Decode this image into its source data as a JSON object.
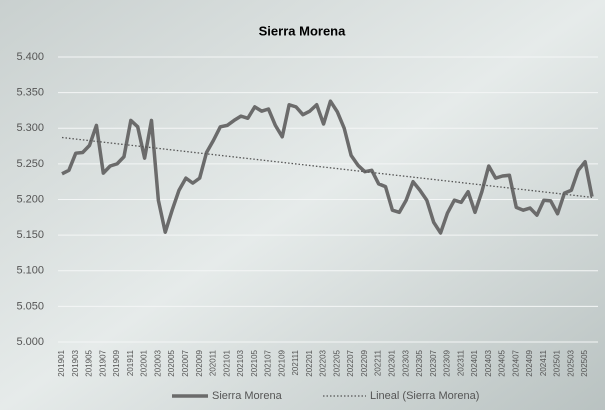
{
  "chart_data": {
    "type": "line",
    "title": "Sierra Morena",
    "categories": [
      "201901",
      null,
      "201903",
      null,
      "201905",
      null,
      "201907",
      null,
      "201909",
      null,
      "201911",
      null,
      "202001",
      null,
      "202003",
      null,
      "202005",
      null,
      "202007",
      null,
      "202009",
      null,
      "202011",
      null,
      "202101",
      null,
      "202103",
      null,
      "202105",
      null,
      "202107",
      null,
      "202109",
      null,
      "202111",
      null,
      "202201",
      null,
      "202203",
      null,
      "202205",
      null,
      "202207",
      null,
      "202209",
      null,
      "202211",
      null,
      "202301",
      null,
      "202303",
      null,
      "202305",
      null,
      "202307",
      null,
      "202309",
      null,
      "202311",
      null,
      "202401",
      null,
      "202403",
      null,
      "202405",
      null,
      "202407",
      null,
      "202409",
      null,
      "202411",
      null,
      "202501",
      null,
      "202503",
      null,
      "202505",
      null
    ],
    "series": [
      {
        "name": "Sierra Morena",
        "color": "#6b6b6b",
        "values": [
          5236,
          5241,
          5265,
          5266,
          5276,
          5304,
          5237,
          5247,
          5250,
          5260,
          5311,
          5302,
          5258,
          5311,
          5199,
          5154,
          5185,
          5213,
          5230,
          5223,
          5230,
          5266,
          5283,
          5302,
          5304,
          5311,
          5317,
          5314,
          5330,
          5324,
          5327,
          5304,
          5288,
          5333,
          5330,
          5319,
          5324,
          5333,
          5306,
          5338,
          5323,
          5300,
          5262,
          5248,
          5239,
          5241,
          5222,
          5218,
          5185,
          5182,
          5199,
          5225,
          5213,
          5199,
          5168,
          5153,
          5181,
          5199,
          5196,
          5211,
          5182,
          5211,
          5247,
          5230,
          5233,
          5234,
          5189,
          5185,
          5188,
          5178,
          5199,
          5198,
          5180,
          5209,
          5213,
          5241,
          5253,
          5204
        ]
      }
    ],
    "trendline": {
      "name": "Lineal (Sierra Morena)",
      "color": "#555555",
      "start": 5287,
      "end": 5203
    },
    "ylim": [
      5000,
      5400
    ],
    "yticks": [
      {
        "value": 5000,
        "label": "5.000"
      },
      {
        "value": 5050,
        "label": "5.050"
      },
      {
        "value": 5100,
        "label": "5.100"
      },
      {
        "value": 5150,
        "label": "5.150"
      },
      {
        "value": 5200,
        "label": "5.200"
      },
      {
        "value": 5250,
        "label": "5.250"
      },
      {
        "value": 5300,
        "label": "5.300"
      },
      {
        "value": 5350,
        "label": "5.350"
      },
      {
        "value": 5400,
        "label": "5.400"
      }
    ],
    "grid": true
  }
}
